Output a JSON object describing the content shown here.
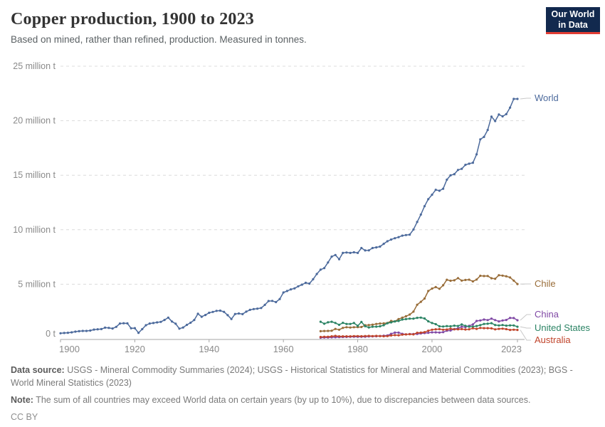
{
  "header": {
    "title": "Copper production, 1900 to 2023",
    "subtitle": "Based on mined, rather than refined, production. Measured in tonnes.",
    "logo": {
      "line1": "Our World",
      "line2": "in Data"
    }
  },
  "footer": {
    "data_source_label": "Data source:",
    "data_source_text": " USGS - Mineral Commodity Summaries (2024); USGS - Historical Statistics for Mineral and Material Commodities (2023); BGS - World Mineral Statistics (2023)",
    "note_label": "Note:",
    "note_text": " The sum of all countries may exceed World data on certain years (by up to 10%), due to discrepancies between data sources.",
    "license": "CC BY"
  },
  "colors": {
    "world": "#4C6A9C",
    "chile": "#996D39",
    "china": "#8049A5",
    "united_states": "#2C8465",
    "australia": "#C0442B",
    "gridline": "#dcdcdc",
    "axis": "#a5a5a5",
    "logo_bg": "#12294e",
    "logo_stripe": "#e23d34"
  },
  "chart_data": {
    "type": "line",
    "title": "Copper production, 1900 to 2023",
    "unit": "million tonnes",
    "grid": true,
    "legend_position": "right-of-line-ends",
    "x_axis": {
      "min": 1900,
      "max": 2023,
      "ticks": [
        "1900",
        "1920",
        "1940",
        "1960",
        "1980",
        "2000",
        "2023"
      ]
    },
    "y_axis": {
      "min": 0,
      "max": 25,
      "ticks": [
        {
          "v": 0,
          "label": "0 t"
        },
        {
          "v": 5,
          "label": "5 million t"
        },
        {
          "v": 10,
          "label": "10 million t"
        },
        {
          "v": 15,
          "label": "15 million t"
        },
        {
          "v": 20,
          "label": "20 million t"
        },
        {
          "v": 25,
          "label": "25 million t"
        }
      ]
    },
    "series": [
      {
        "name": "World",
        "color": "#4C6A9C",
        "start_year": 1900,
        "values": [
          0.5,
          0.53,
          0.55,
          0.59,
          0.65,
          0.69,
          0.72,
          0.72,
          0.75,
          0.84,
          0.87,
          0.89,
          1.02,
          1.0,
          0.94,
          1.09,
          1.4,
          1.42,
          1.41,
          0.96,
          0.97,
          0.54,
          0.88,
          1.24,
          1.4,
          1.44,
          1.5,
          1.55,
          1.72,
          1.94,
          1.58,
          1.38,
          0.93,
          1.03,
          1.27,
          1.47,
          1.72,
          2.29,
          2.02,
          2.18,
          2.38,
          2.46,
          2.56,
          2.58,
          2.47,
          2.16,
          1.81,
          2.27,
          2.32,
          2.26,
          2.49,
          2.65,
          2.72,
          2.76,
          2.82,
          3.11,
          3.46,
          3.47,
          3.36,
          3.64,
          4.24,
          4.38,
          4.53,
          4.62,
          4.81,
          4.96,
          5.13,
          5.06,
          5.46,
          5.94,
          6.34,
          6.48,
          7.0,
          7.53,
          7.68,
          7.29,
          7.87,
          7.91,
          7.87,
          7.93,
          7.87,
          8.32,
          8.1,
          8.11,
          8.32,
          8.38,
          8.45,
          8.71,
          8.94,
          9.1,
          9.22,
          9.32,
          9.46,
          9.51,
          9.55,
          10.02,
          10.71,
          11.39,
          12.16,
          12.8,
          13.21,
          13.66,
          13.58,
          13.76,
          14.59,
          14.99,
          15.1,
          15.48,
          15.59,
          15.95,
          16.06,
          16.14,
          16.91,
          18.29,
          18.51,
          19.15,
          20.38,
          19.97,
          20.57,
          20.4,
          20.6,
          21.2,
          22.0,
          22.0
        ]
      },
      {
        "name": "Chile",
        "color": "#996D39",
        "start_year": 1970,
        "values": [
          0.69,
          0.71,
          0.72,
          0.74,
          0.9,
          0.83,
          1.0,
          1.06,
          1.03,
          1.06,
          1.07,
          1.08,
          1.24,
          1.26,
          1.29,
          1.36,
          1.4,
          1.41,
          1.45,
          1.63,
          1.59,
          1.81,
          1.93,
          2.06,
          2.22,
          2.49,
          3.12,
          3.39,
          3.69,
          4.38,
          4.6,
          4.74,
          4.58,
          4.9,
          5.41,
          5.32,
          5.36,
          5.56,
          5.33,
          5.39,
          5.42,
          5.26,
          5.43,
          5.78,
          5.75,
          5.76,
          5.55,
          5.5,
          5.83,
          5.79,
          5.73,
          5.62,
          5.33,
          5.02
        ]
      },
      {
        "name": "China",
        "color": "#8049A5",
        "start_year": 1970,
        "values": [
          0.1,
          0.11,
          0.12,
          0.13,
          0.14,
          0.15,
          0.16,
          0.17,
          0.18,
          0.19,
          0.18,
          0.18,
          0.19,
          0.21,
          0.22,
          0.23,
          0.25,
          0.28,
          0.3,
          0.45,
          0.56,
          0.56,
          0.45,
          0.4,
          0.43,
          0.44,
          0.44,
          0.49,
          0.52,
          0.55,
          0.59,
          0.59,
          0.57,
          0.61,
          0.74,
          0.76,
          0.89,
          0.95,
          1.1,
          1.07,
          1.19,
          1.31,
          1.63,
          1.68,
          1.76,
          1.71,
          1.85,
          1.71,
          1.59,
          1.68,
          1.72,
          1.91,
          1.9,
          1.7
        ]
      },
      {
        "name": "United States",
        "color": "#2C8465",
        "start_year": 1970,
        "values": [
          1.56,
          1.38,
          1.51,
          1.56,
          1.45,
          1.28,
          1.46,
          1.36,
          1.36,
          1.44,
          1.18,
          1.54,
          1.15,
          1.04,
          1.1,
          1.11,
          1.14,
          1.24,
          1.42,
          1.5,
          1.59,
          1.63,
          1.76,
          1.8,
          1.85,
          1.85,
          1.92,
          1.94,
          1.86,
          1.6,
          1.44,
          1.34,
          1.14,
          1.12,
          1.16,
          1.14,
          1.2,
          1.17,
          1.31,
          1.18,
          1.11,
          1.11,
          1.17,
          1.25,
          1.36,
          1.38,
          1.43,
          1.26,
          1.22,
          1.26,
          1.2,
          1.23,
          1.22,
          1.1
        ]
      },
      {
        "name": "Australia",
        "color": "#C0442B",
        "start_year": 1970,
        "values": [
          0.16,
          0.18,
          0.18,
          0.22,
          0.26,
          0.22,
          0.22,
          0.22,
          0.22,
          0.24,
          0.24,
          0.23,
          0.25,
          0.26,
          0.24,
          0.26,
          0.25,
          0.23,
          0.24,
          0.3,
          0.33,
          0.32,
          0.38,
          0.4,
          0.42,
          0.4,
          0.55,
          0.56,
          0.61,
          0.74,
          0.83,
          0.87,
          0.88,
          0.83,
          0.85,
          0.93,
          0.86,
          0.87,
          0.89,
          0.85,
          0.87,
          0.96,
          0.91,
          0.99,
          0.97,
          0.97,
          0.95,
          0.86,
          0.91,
          0.93,
          0.88,
          0.81,
          0.83,
          0.81
        ]
      }
    ]
  }
}
